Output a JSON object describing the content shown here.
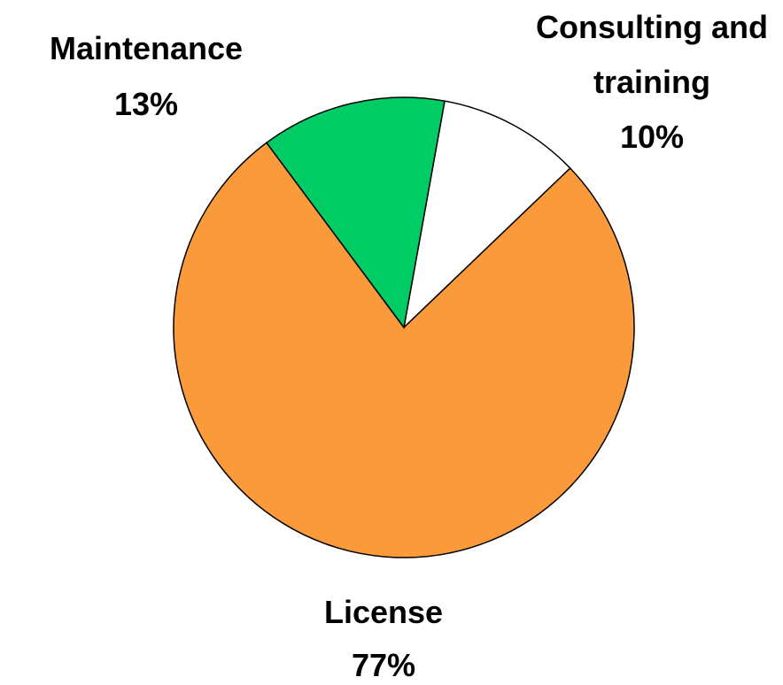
{
  "chart_data": {
    "type": "pie",
    "categories": [
      "Consulting and training",
      "License",
      "Maintenance"
    ],
    "values": [
      10,
      77,
      13
    ],
    "value_labels": [
      "10%",
      "77%",
      "13%"
    ],
    "colors": [
      "#ffffff",
      "#fa9a3a",
      "#00cc66"
    ]
  }
}
